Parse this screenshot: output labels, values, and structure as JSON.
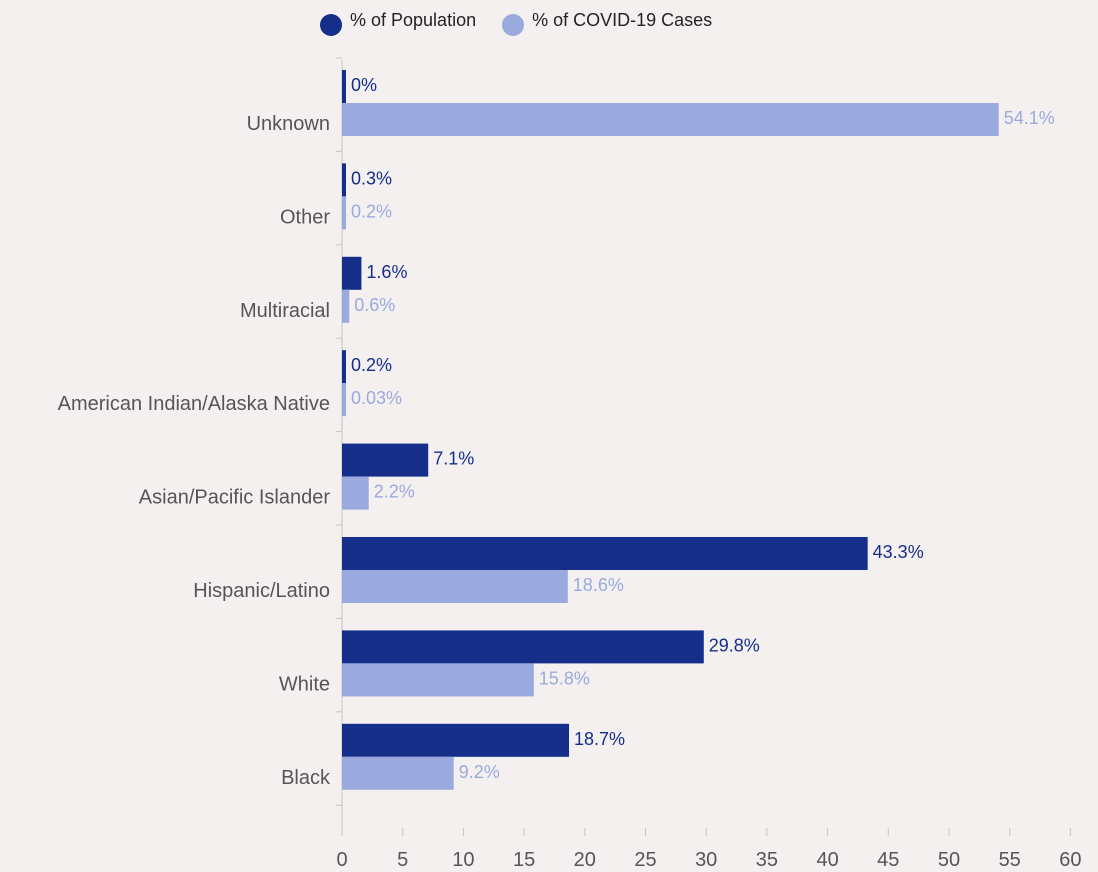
{
  "chart_data": {
    "type": "bar",
    "orientation": "horizontal",
    "categories": [
      "Unknown",
      "Other",
      "Multiracial",
      "American Indian/Alaska Native",
      "Asian/Pacific Islander",
      "Hispanic/Latino",
      "White",
      "Black"
    ],
    "series": [
      {
        "name": "% of Population",
        "color": "#142e8a",
        "values": [
          0,
          0.3,
          1.6,
          0.2,
          7.1,
          43.3,
          29.8,
          18.7
        ],
        "labels": [
          "0%",
          "0.3%",
          "1.6%",
          "0.2%",
          "7.1%",
          "43.3%",
          "29.8%",
          "18.7%"
        ]
      },
      {
        "name": "% of COVID-19 Cases",
        "color": "#9aaadf",
        "values": [
          54.1,
          0.2,
          0.6,
          0.03,
          2.2,
          18.6,
          15.8,
          9.2
        ],
        "labels": [
          "54.1%",
          "0.2%",
          "0.6%",
          "0.03%",
          "2.2%",
          "18.6%",
          "15.8%",
          "9.2%"
        ]
      }
    ],
    "xlim": [
      0,
      60
    ],
    "xticks": [
      0,
      5,
      10,
      15,
      20,
      25,
      30,
      35,
      40,
      45,
      50,
      55,
      60
    ],
    "legend_position": "top",
    "grid": false
  }
}
